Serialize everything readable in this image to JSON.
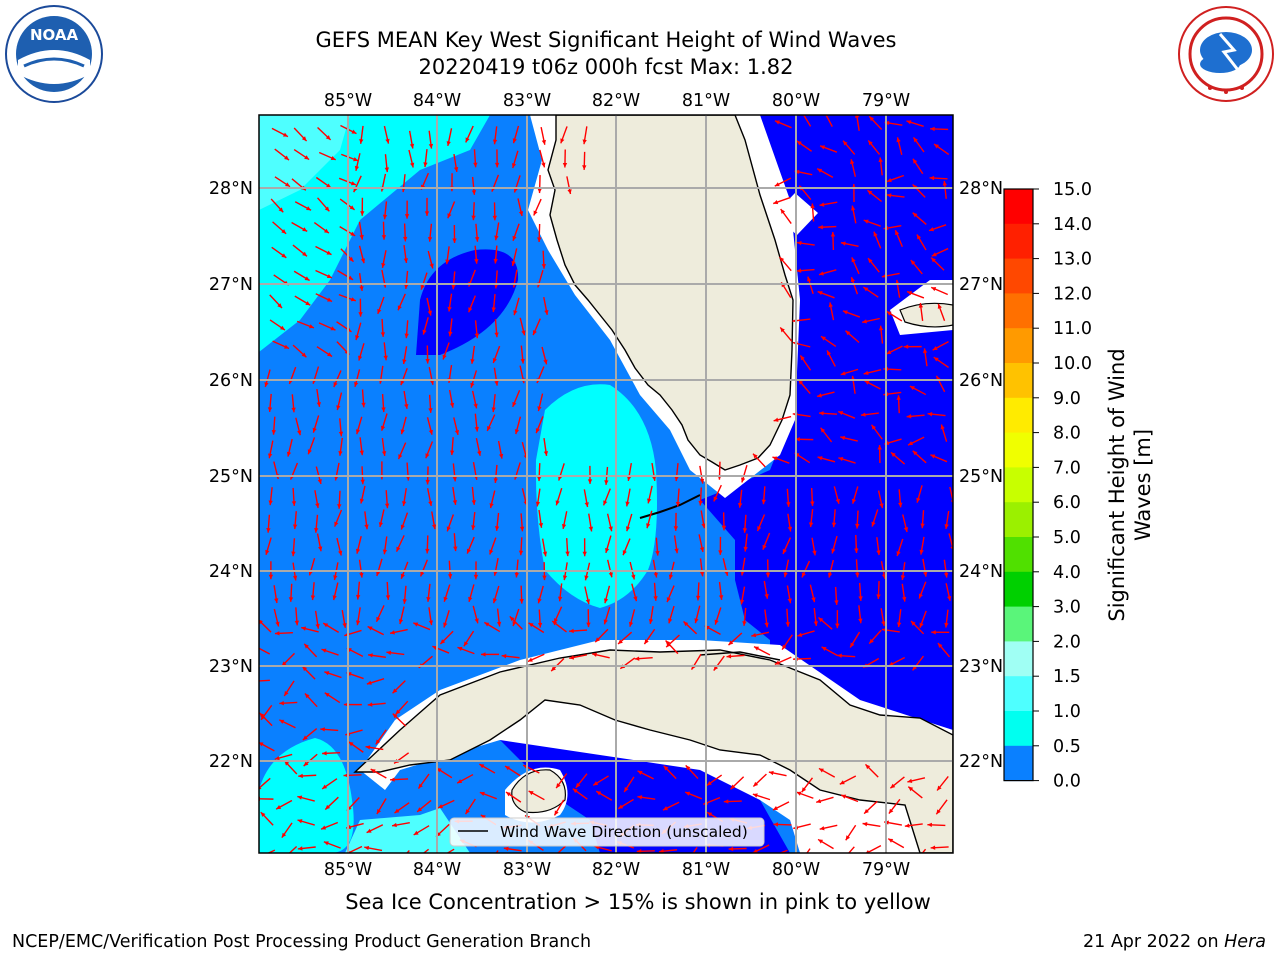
{
  "title_line1": "GEFS MEAN Key West Significant Height of Wind Waves",
  "title_line2": "20220419 t06z 000h fcst   Max: 1.82",
  "lon_labels": [
    "85°W",
    "84°W",
    "83°W",
    "82°W",
    "81°W",
    "80°W",
    "79°W"
  ],
  "lat_labels": [
    "28°N",
    "27°N",
    "26°N",
    "25°N",
    "24°N",
    "23°N",
    "22°N"
  ],
  "legend": {
    "label": "Wind Wave Direction (unscaled)"
  },
  "colorbar": {
    "label_line1": "Significant Height of Wind",
    "label_line2": "Waves [m]",
    "ticks": [
      "15.0",
      "14.0",
      "13.0",
      "12.0",
      "11.0",
      "10.0",
      "9.0",
      "8.0",
      "7.0",
      "6.0",
      "5.0",
      "4.0",
      "3.0",
      "2.0",
      "1.5",
      "1.0",
      "0.5",
      "0.0"
    ],
    "colors": [
      "#ff0000",
      "#ff2000",
      "#ff4800",
      "#ff7000",
      "#ff9a00",
      "#ffc200",
      "#ffeb00",
      "#f0ff00",
      "#c8ff00",
      "#9bf000",
      "#50e000",
      "#00d000",
      "#5af57a",
      "#a0fff4",
      "#4effff",
      "#00fff0",
      "#0a80ff",
      "#0000ff"
    ]
  },
  "sea_ice_note": "Sea Ice Concentration > 15% is shown in pink to yellow",
  "footer_left": "NCEP/EMC/Verification Post Processing Product Generation Branch",
  "footer_right_date": "21 Apr 2022 on",
  "footer_right_machine": "Hera",
  "logo_left_text": "NOAA",
  "colors": {
    "land": "#eeecdc",
    "deep_blue": "#0000ff",
    "mid_blue": "#0a80ff",
    "cyan": "#00ffff",
    "arrow": "#ff0000"
  }
}
